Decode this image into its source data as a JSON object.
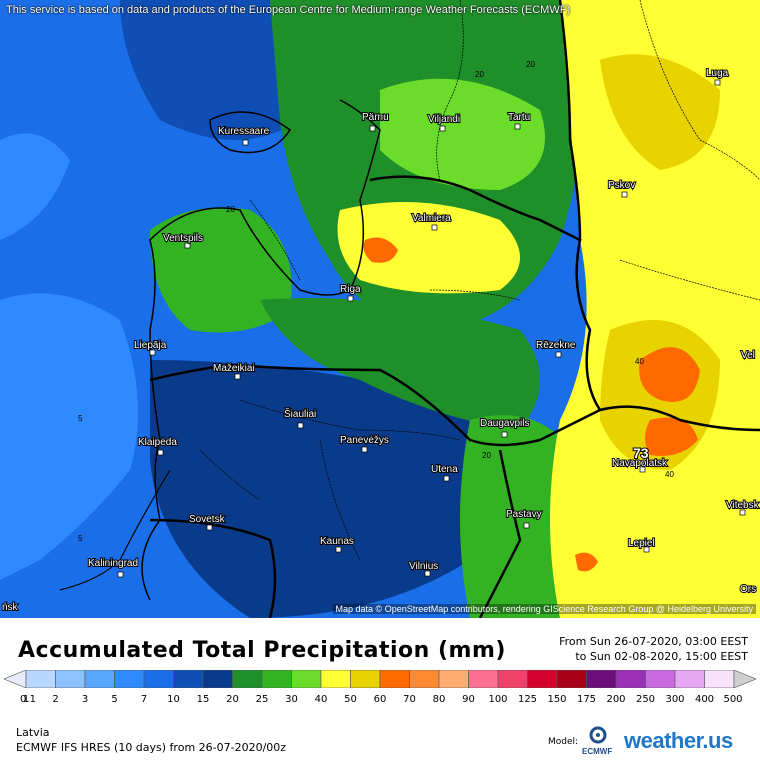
{
  "map": {
    "disclaimer": "This service is based on data and products of the European Centre for Medium-range Weather Forecasts (ECMWF)",
    "attribution": "Map data © OpenStreetMap contributors, rendering GIScience Research Group @ Heidelberg University",
    "cities": {
      "luga": "Luga",
      "kuressaare": "Kuressaare",
      "parnu": "Pärnu",
      "viljandi": "Viljandi",
      "tartu": "Tartu",
      "pskov": "Pskov",
      "valmiera": "Valmiera",
      "ventspils": "Ventspils",
      "riga": "Riga",
      "liepaja": "Liepāja",
      "rezekne": "Rēzekne",
      "mazeikiai": "Mažeikiai",
      "siauliai": "Šiauliai",
      "panevezys": "Panevėžys",
      "daugavpils": "Daugavpils",
      "klaipeda": "Klaipėda",
      "utena": "Utena",
      "navapolatsk": "Navapolatsk",
      "vitebsk": "Vitebsk",
      "sovetsk": "Sovetsk",
      "pastavy": "Pastavy",
      "kaunas": "Kaunas",
      "lepiel": "Lepiel",
      "vilnius": "Vilnius",
      "kaliningrad": "Kaliningrad",
      "edge_vel": "Vel",
      "edge_orsh": "Ors",
      "edge_nsk": "ńsk"
    },
    "contour_labels": {
      "c20_north": "20",
      "c20_north2": "20",
      "c20_ventspils": "20",
      "c5_west1": "5",
      "c5_west2": "5",
      "c20_daugavpils": "20",
      "c40_east": "40",
      "c40_navapolatsk": "40"
    },
    "max_value_label": "73"
  },
  "legend": {
    "title": "Accumulated Total Precipitation (mm)",
    "period_from": "From Sun 26-07-2020, 03:00 EEST",
    "period_to": "to Sun 02-08-2020, 15:00 EEST",
    "scale": [
      {
        "v": "0.1",
        "c": "#e9e9ff"
      },
      {
        "v": "1",
        "c": "#b8d8ff"
      },
      {
        "v": "2",
        "c": "#8cc2ff"
      },
      {
        "v": "3",
        "c": "#5aa7ff"
      },
      {
        "v": "5",
        "c": "#2f8aff"
      },
      {
        "v": "7",
        "c": "#1a6ee8"
      },
      {
        "v": "10",
        "c": "#0f4fb5"
      },
      {
        "v": "15",
        "c": "#0a3b8a"
      },
      {
        "v": "20",
        "c": "#1f8f2a"
      },
      {
        "v": "25",
        "c": "#33b324"
      },
      {
        "v": "30",
        "c": "#6bdc2a"
      },
      {
        "v": "40",
        "c": "#ffff33"
      },
      {
        "v": "50",
        "c": "#e8d200"
      },
      {
        "v": "60",
        "c": "#ff6a00"
      },
      {
        "v": "70",
        "c": "#ff8a33"
      },
      {
        "v": "80",
        "c": "#ffad70"
      },
      {
        "v": "90",
        "c": "#ff6f91"
      },
      {
        "v": "100",
        "c": "#f0416b"
      },
      {
        "v": "125",
        "c": "#d1002c"
      },
      {
        "v": "150",
        "c": "#a80018"
      },
      {
        "v": "175",
        "c": "#6b0f78"
      },
      {
        "v": "200",
        "c": "#9b2fb5"
      },
      {
        "v": "250",
        "c": "#c96ae0"
      },
      {
        "v": "300",
        "c": "#e6a8f2"
      },
      {
        "v": "400",
        "c": "#f7e2fa"
      },
      {
        "v": "500",
        "c": "#cfcfcf"
      }
    ]
  },
  "footer": {
    "region": "Latvia",
    "model_run": "ECMWF IFS HRES (10 days) from 26-07-2020/00z",
    "model_label": "Model:",
    "ecmwf_text": "ECMWF",
    "brand": "weather.us"
  }
}
